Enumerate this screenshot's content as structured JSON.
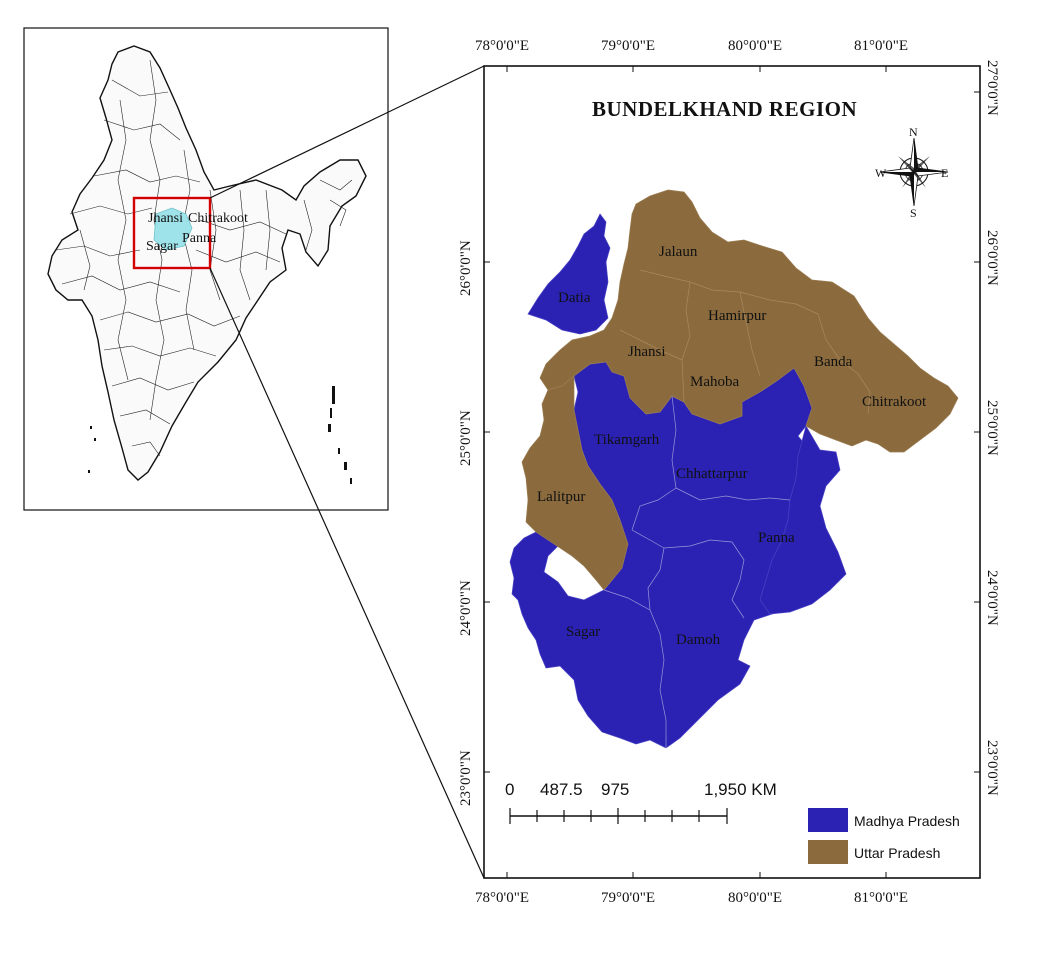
{
  "map": {
    "title": "BUNDELKHAND REGION",
    "colors": {
      "madhya_pradesh": "#2b22b4",
      "uttar_pradesh": "#8b6b3d",
      "highlight": "#9fe3ea",
      "inset_box": "#d40000"
    },
    "graticule": {
      "top": [
        "78°0'0\"E",
        "79°0'0\"E",
        "80°0'0\"E",
        "81°0'0\"E"
      ],
      "bottom": [
        "78°0'0\"E",
        "79°0'0\"E",
        "80°0'0\"E",
        "81°0'0\"E"
      ],
      "left": [
        "26°0'0\"N",
        "25°0'0\"N",
        "24°0'0\"N",
        "23°0'0\"N"
      ],
      "right": [
        "27°0'0\"N",
        "26°0'0\"N",
        "25°0'0\"N",
        "24°0'0\"N",
        "23°0'0\"N"
      ]
    },
    "districts": {
      "jalaun": "Jalaun",
      "datia": "Datia",
      "hamirpur": "Hamirpur",
      "jhansi": "Jhansi",
      "banda": "Banda",
      "mahoba": "Mahoba",
      "chitrakoot": "Chitrakoot",
      "tikamgarh": "Tikamgarh",
      "chhattarpur": "Chhattarpur",
      "lalitpur": "Lalitpur",
      "panna": "Panna",
      "sagar": "Sagar",
      "damoh": "Damoh"
    },
    "compass": {
      "n": "N",
      "s": "S",
      "e": "E",
      "w": "W"
    },
    "scale_bar": {
      "labels": [
        "0",
        "487.5",
        "975",
        "1,950 KM"
      ]
    },
    "legend": [
      {
        "label": "Madhya Pradesh",
        "color": "#2b22b4"
      },
      {
        "label": "Uttar Pradesh",
        "color": "#8b6b3d"
      }
    ],
    "inset": {
      "labels": {
        "jhansi": "Jhansi",
        "chitrakoot": "Chitrakoot",
        "sagar": "Sagar",
        "panna": "Panna"
      }
    }
  }
}
